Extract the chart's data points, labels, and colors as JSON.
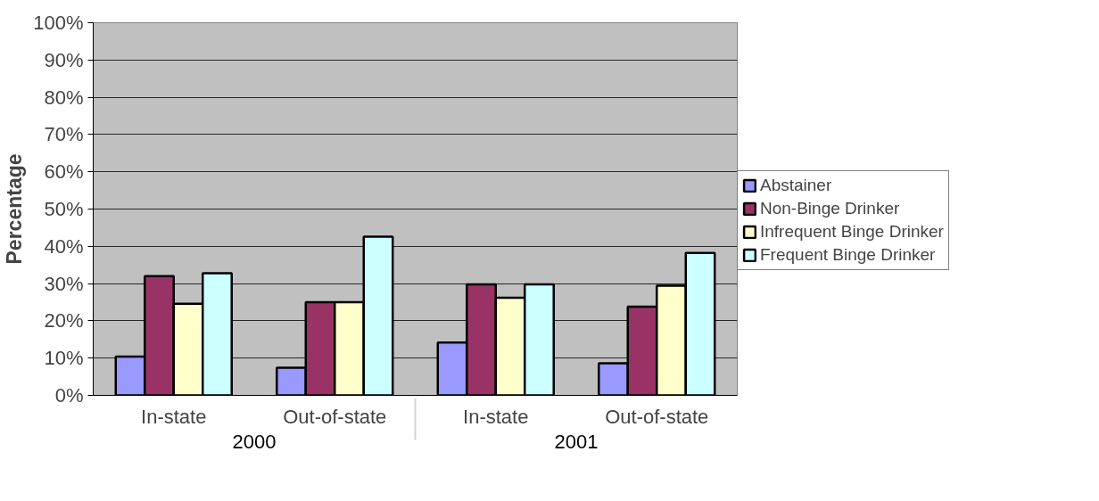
{
  "chart_data": {
    "type": "bar",
    "ylabel": "Percentage",
    "categories": [
      "In-state",
      "Out-of-state",
      "In-state",
      "Out-of-state"
    ],
    "annotations": [
      "2000",
      "2001"
    ],
    "series": [
      {
        "name": "Abstainer",
        "color": "#9999ff",
        "values": [
          10.4,
          7.4,
          14.2,
          8.6
        ]
      },
      {
        "name": "Non-Binge Drinker",
        "color": "#993366",
        "values": [
          32.0,
          25.0,
          29.8,
          23.8
        ]
      },
      {
        "name": "Infrequent Binge Drinker",
        "color": "#ffffcc",
        "values": [
          24.6,
          25.0,
          26.2,
          29.4
        ]
      },
      {
        "name": "Frequent Binge Drinker",
        "color": "#ccffff",
        "values": [
          32.8,
          42.6,
          29.8,
          38.2
        ]
      }
    ],
    "ylim": [
      0,
      100
    ],
    "yticks": [
      {
        "value": 0,
        "label": "0%"
      },
      {
        "value": 10,
        "label": "10%"
      },
      {
        "value": 20,
        "label": "20%"
      },
      {
        "value": 30,
        "label": "30%"
      },
      {
        "value": 40,
        "label": "40%"
      },
      {
        "value": 50,
        "label": "50%"
      },
      {
        "value": 60,
        "label": "60%"
      },
      {
        "value": 70,
        "label": "70%"
      },
      {
        "value": 80,
        "label": "80%"
      },
      {
        "value": 90,
        "label": "90%"
      },
      {
        "value": 100,
        "label": "100%"
      }
    ],
    "grid": "y",
    "legend": "right"
  }
}
